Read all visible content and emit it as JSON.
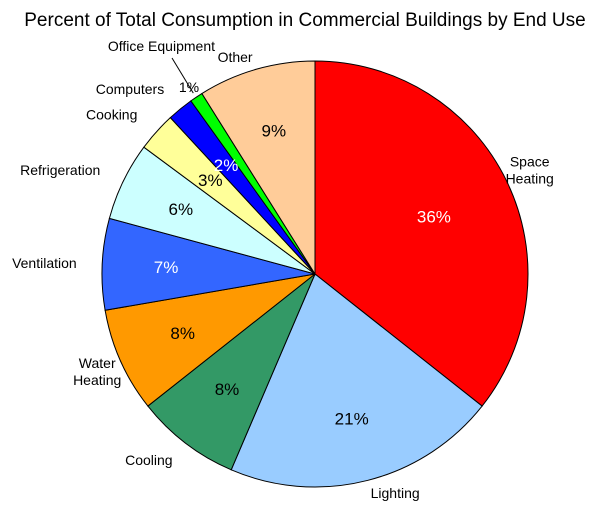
{
  "chart_data": {
    "type": "pie",
    "title": "Percent of Total Consumption in Commercial Buildings by End Use",
    "slices": [
      {
        "label": "Space Heating",
        "label_lines": [
          "Space",
          "Heating"
        ],
        "value": 36,
        "value_label": "36%",
        "color": "#ff0000",
        "value_text_color": "#ffffff"
      },
      {
        "label": "Lighting",
        "label_lines": [
          "Lighting"
        ],
        "value": 21,
        "value_label": "21%",
        "color": "#99ccff",
        "value_text_color": "#000000"
      },
      {
        "label": "Cooling",
        "label_lines": [
          "Cooling"
        ],
        "value": 8,
        "value_label": "8%",
        "color": "#339966",
        "value_text_color": "#000000"
      },
      {
        "label": "Water Heating",
        "label_lines": [
          "Water",
          "Heating"
        ],
        "value": 8,
        "value_label": "8%",
        "color": "#ff9900",
        "value_text_color": "#000000"
      },
      {
        "label": "Ventilation",
        "label_lines": [
          "Ventilation"
        ],
        "value": 7,
        "value_label": "7%",
        "color": "#3366ff",
        "value_text_color": "#ffffff"
      },
      {
        "label": "Refrigeration",
        "label_lines": [
          "Refrigeration"
        ],
        "value": 6,
        "value_label": "6%",
        "color": "#ccffff",
        "value_text_color": "#000000"
      },
      {
        "label": "Cooking",
        "label_lines": [
          "Cooking"
        ],
        "value": 3,
        "value_label": "3%",
        "color": "#ffff99",
        "value_text_color": "#000000"
      },
      {
        "label": "Computers",
        "label_lines": [
          "Computers"
        ],
        "value": 2,
        "value_label": "2%",
        "color": "#0000ff",
        "value_text_color": "#ffffff"
      },
      {
        "label": "Office Equipment",
        "label_lines": [
          "Office Equipment"
        ],
        "value": 1,
        "value_label": "1%",
        "color": "#00ff00",
        "value_text_color": "#000000"
      },
      {
        "label": "Other",
        "label_lines": [
          "Other"
        ],
        "value": 9,
        "value_label": "9%",
        "color": "#ffcc99",
        "value_text_color": "#000000"
      }
    ]
  }
}
